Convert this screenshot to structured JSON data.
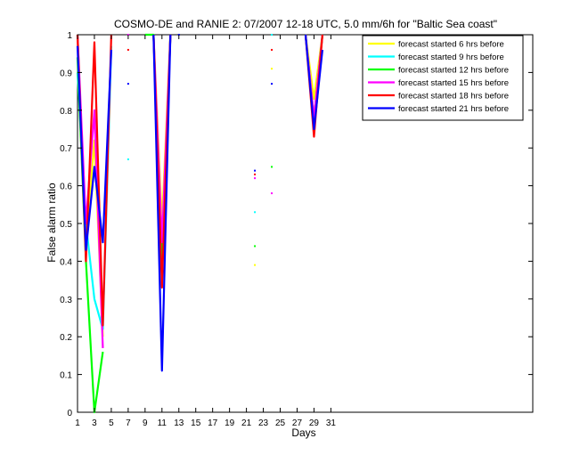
{
  "chart_data": {
    "type": "line",
    "title": "COSMO-DE and RANIE 2: 07/2007 12-18 UTC, 5.0 mm/6h for \"Baltic Sea coast\"",
    "xlabel": "Days",
    "ylabel": "False alarm ratio",
    "xlim": [
      1,
      55
    ],
    "ylim": [
      0,
      1
    ],
    "xticks": [
      1,
      3,
      5,
      7,
      9,
      11,
      13,
      15,
      17,
      19,
      21,
      23,
      25,
      27,
      29,
      31
    ],
    "yticks": [
      0,
      0.1,
      0.2,
      0.3,
      0.4,
      0.5,
      0.6,
      0.7,
      0.8,
      0.9,
      1
    ],
    "ytick_labels": [
      "0",
      "0.1",
      "0.2",
      "0.3",
      "0.4",
      "0.5",
      "0.6",
      "0.7",
      "0.8",
      "0.9",
      "1"
    ],
    "legend_position": "top-right",
    "grid": false,
    "series": [
      {
        "name": "forecast started 6 hrs before",
        "color": "#ffff00",
        "segments": [
          [
            [
              1,
              1
            ],
            [
              2,
              0.45
            ],
            [
              3,
              0.72
            ],
            [
              4,
              0.2
            ]
          ],
          [
            [
              10,
              1
            ],
            [
              11,
              0.5
            ],
            [
              12,
              1
            ]
          ],
          [
            [
              28,
              1
            ],
            [
              29,
              0.83
            ],
            [
              30,
              1
            ]
          ]
        ],
        "points": [
          [
            22,
            0.39
          ],
          [
            24,
            0.91
          ]
        ]
      },
      {
        "name": "forecast started 9 hrs before",
        "color": "#00ffff",
        "segments": [
          [
            [
              1,
              0.9
            ],
            [
              2,
              0.5
            ],
            [
              3,
              0.3
            ],
            [
              4,
              0.22
            ],
            [
              5,
              0.97
            ]
          ],
          [
            [
              10,
              1
            ],
            [
              11,
              0.4
            ],
            [
              12,
              1
            ]
          ],
          [
            [
              28,
              1
            ],
            [
              29,
              0.77
            ],
            [
              30,
              1
            ]
          ]
        ],
        "points": [
          [
            7,
            0.67
          ],
          [
            22,
            0.53
          ],
          [
            24,
            1
          ]
        ]
      },
      {
        "name": "forecast started 12 hrs before",
        "color": "#00ff00",
        "segments": [
          [
            [
              1,
              0.94
            ],
            [
              2,
              0.4
            ],
            [
              3,
              0
            ],
            [
              4,
              0.16
            ]
          ],
          [
            [
              9,
              1
            ],
            [
              10,
              1
            ],
            [
              11,
              0.39
            ],
            [
              12,
              1
            ]
          ],
          [
            [
              28,
              1
            ],
            [
              29,
              0.78
            ],
            [
              30,
              1
            ]
          ]
        ],
        "points": [
          [
            22,
            0.44
          ],
          [
            24,
            0.65
          ]
        ]
      },
      {
        "name": "forecast started 15 hrs before",
        "color": "#ff00ff",
        "segments": [
          [
            [
              1,
              1
            ],
            [
              2,
              0.5
            ],
            [
              3,
              0.8
            ],
            [
              4,
              0.17
            ]
          ],
          [
            [
              10,
              1
            ],
            [
              11,
              0.45
            ],
            [
              12,
              1
            ]
          ],
          [
            [
              28,
              1
            ],
            [
              29,
              0.78
            ],
            [
              30,
              1
            ]
          ]
        ],
        "points": [
          [
            7,
            1
          ],
          [
            22,
            0.62
          ],
          [
            24,
            0.58
          ]
        ]
      },
      {
        "name": "forecast started 18 hrs before",
        "color": "#ff0000",
        "segments": [
          [
            [
              1,
              1
            ],
            [
              2,
              0.4
            ],
            [
              3,
              0.98
            ],
            [
              4,
              0.23
            ],
            [
              5,
              1
            ]
          ],
          [
            [
              10,
              1
            ],
            [
              11,
              0.33
            ],
            [
              12,
              1
            ]
          ],
          [
            [
              28,
              1
            ],
            [
              29,
              0.73
            ],
            [
              30,
              1
            ]
          ]
        ],
        "points": [
          [
            7,
            0.96
          ],
          [
            22,
            0.63
          ],
          [
            24,
            0.96
          ]
        ]
      },
      {
        "name": "forecast started 21 hrs before",
        "color": "#0000ff",
        "segments": [
          [
            [
              1,
              0.97
            ],
            [
              2,
              0.43
            ],
            [
              3,
              0.65
            ],
            [
              4,
              0.45
            ],
            [
              5,
              0.96
            ]
          ],
          [
            [
              10,
              1
            ],
            [
              11,
              0.11
            ],
            [
              12,
              1
            ]
          ],
          [
            [
              28,
              1
            ],
            [
              29,
              0.75
            ],
            [
              30,
              0.96
            ]
          ]
        ],
        "points": [
          [
            7,
            0.87
          ],
          [
            13,
            1
          ],
          [
            22,
            0.64
          ],
          [
            24,
            0.87
          ]
        ]
      }
    ]
  }
}
